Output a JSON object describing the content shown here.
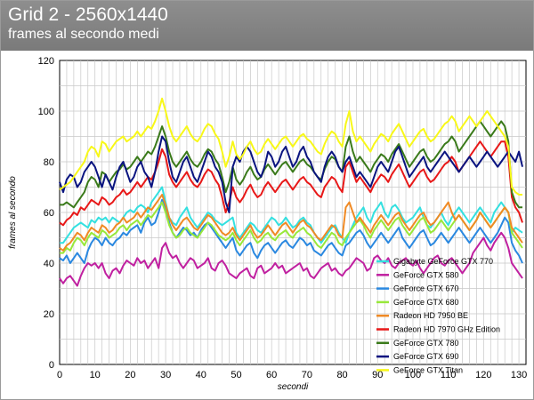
{
  "header": {
    "title": "Grid 2 - 2560x1440",
    "subtitle": "frames al secondo medi"
  },
  "colors": {
    "header_bg": "#858585",
    "grid": "#c8c8c8"
  },
  "chart_data": {
    "type": "line",
    "xlabel": "secondi",
    "ylabel": "frames al secondo",
    "xlim": [
      0,
      132
    ],
    "ylim": [
      0,
      120
    ],
    "xticks": [
      0,
      10,
      20,
      30,
      40,
      50,
      60,
      70,
      80,
      90,
      100,
      110,
      120,
      130
    ],
    "yticks": [
      0,
      20,
      40,
      60,
      80,
      100,
      120
    ],
    "grid": true,
    "legend_position": "bottom-right",
    "series": [
      {
        "name": "Gigabyte GeForce GTX 770",
        "color": "#33e0e0",
        "x_start": 0,
        "values": [
          48,
          48,
          50,
          52,
          54,
          55,
          56,
          55,
          54,
          57,
          56,
          58,
          57,
          58,
          56,
          58,
          57,
          56,
          58,
          60,
          61,
          60,
          62,
          63,
          62,
          60,
          64,
          66,
          68,
          70,
          64,
          58,
          56,
          55,
          58,
          60,
          62,
          58,
          56,
          54,
          56,
          58,
          60,
          59,
          57,
          56,
          55,
          56,
          57,
          58,
          52,
          50,
          52,
          54,
          56,
          55,
          53,
          52,
          54,
          56,
          58,
          57,
          55,
          56,
          58,
          56,
          54,
          55,
          57,
          58,
          56,
          55,
          52,
          50,
          48,
          50,
          52,
          54,
          55,
          52,
          50,
          48,
          52,
          55,
          58,
          60,
          62,
          58,
          56,
          60,
          62,
          64,
          60,
          58,
          62,
          63,
          61,
          58,
          56,
          57,
          58,
          60,
          62,
          58,
          55,
          54,
          56,
          58,
          60,
          57,
          55,
          58,
          60,
          62,
          60,
          58,
          56,
          58,
          60,
          62,
          60,
          58,
          56,
          60,
          62,
          64,
          62,
          60,
          52,
          54,
          53,
          52
        ]
      },
      {
        "name": "GeForce GTX 580",
        "color": "#c020a0",
        "x_start": 0,
        "values": [
          34,
          32,
          34,
          35,
          33,
          31,
          35,
          38,
          40,
          39,
          40,
          38,
          40,
          36,
          34,
          37,
          38,
          36,
          39,
          41,
          40,
          39,
          42,
          40,
          41,
          38,
          40,
          42,
          38,
          46,
          48,
          44,
          42,
          43,
          40,
          38,
          40,
          42,
          41,
          38,
          39,
          40,
          42,
          38,
          37,
          40,
          41,
          39,
          36,
          35,
          34,
          36,
          37,
          38,
          35,
          34,
          38,
          39,
          36,
          37,
          38,
          40,
          38,
          39,
          36,
          37,
          38,
          39,
          40,
          37,
          38,
          35,
          34,
          36,
          38,
          39,
          40,
          37,
          38,
          36,
          35,
          37,
          38,
          40,
          42,
          41,
          40,
          37,
          38,
          42,
          43,
          41,
          40,
          42,
          39,
          38,
          40,
          41,
          42,
          40,
          39,
          41,
          38,
          36,
          38,
          40,
          42,
          43,
          40,
          39,
          41,
          42,
          40,
          38,
          36,
          38,
          40,
          44,
          46,
          48,
          50,
          47,
          45,
          48,
          50,
          52,
          50,
          46,
          40,
          38,
          36,
          34
        ]
      },
      {
        "name": "GeForce GTX 670",
        "color": "#2a88e0",
        "x_start": 0,
        "values": [
          42,
          41,
          43,
          40,
          42,
          44,
          42,
          40,
          45,
          48,
          50,
          49,
          47,
          50,
          48,
          47,
          49,
          50,
          52,
          51,
          53,
          54,
          55,
          52,
          56,
          58,
          55,
          56,
          60,
          65,
          62,
          56,
          52,
          50,
          52,
          54,
          53,
          51,
          52,
          50,
          53,
          55,
          56,
          54,
          52,
          50,
          48,
          46,
          48,
          50,
          45,
          43,
          45,
          47,
          48,
          44,
          42,
          45,
          47,
          48,
          46,
          44,
          46,
          48,
          49,
          47,
          46,
          48,
          50,
          49,
          47,
          48,
          45,
          44,
          43,
          45,
          47,
          48,
          46,
          44,
          43,
          47,
          48,
          50,
          52,
          53,
          51,
          48,
          46,
          48,
          50,
          52,
          50,
          48,
          50,
          52,
          54,
          50,
          48,
          46,
          48,
          50,
          52,
          53,
          50,
          47,
          48,
          50,
          52,
          50,
          48,
          50,
          52,
          54,
          52,
          50,
          48,
          50,
          52,
          54,
          52,
          50,
          48,
          50,
          52,
          55,
          58,
          56,
          48,
          45,
          43,
          40
        ]
      },
      {
        "name": "GeForce GTX 680",
        "color": "#98e83a",
        "x_start": 0,
        "values": [
          44,
          44,
          46,
          45,
          48,
          50,
          49,
          47,
          50,
          52,
          51,
          50,
          53,
          52,
          50,
          51,
          52,
          54,
          55,
          53,
          55,
          56,
          57,
          55,
          57,
          59,
          58,
          60,
          62,
          64,
          60,
          55,
          52,
          50,
          51,
          53,
          54,
          52,
          51,
          50,
          52,
          54,
          56,
          55,
          53,
          51,
          50,
          49,
          50,
          52,
          49,
          47,
          49,
          51,
          53,
          50,
          48,
          49,
          51,
          52,
          50,
          49,
          51,
          52,
          53,
          51,
          50,
          52,
          53,
          54,
          52,
          51,
          49,
          47,
          46,
          48,
          50,
          52,
          51,
          48,
          47,
          50,
          52,
          54,
          56,
          57,
          55,
          52,
          50,
          53,
          55,
          57,
          55,
          53,
          55,
          57,
          58,
          55,
          53,
          51,
          53,
          55,
          57,
          58,
          55,
          52,
          53,
          55,
          57,
          55,
          53,
          55,
          57,
          59,
          57,
          55,
          53,
          55,
          57,
          60,
          58,
          56,
          54,
          56,
          58,
          60,
          62,
          60,
          52,
          50,
          48,
          46
        ]
      },
      {
        "name": "Radeon HD 7950 BE",
        "color": "#f08a24",
        "x_start": 0,
        "values": [
          46,
          45,
          47,
          48,
          50,
          52,
          51,
          49,
          52,
          54,
          53,
          52,
          55,
          54,
          52,
          53,
          55,
          56,
          58,
          56,
          57,
          58,
          60,
          58,
          60,
          62,
          61,
          63,
          65,
          67,
          63,
          58,
          55,
          53,
          55,
          57,
          58,
          56,
          54,
          53,
          55,
          57,
          59,
          58,
          56,
          54,
          52,
          51,
          52,
          54,
          51,
          49,
          51,
          53,
          55,
          52,
          50,
          51,
          53,
          55,
          53,
          51,
          53,
          55,
          56,
          54,
          52,
          54,
          56,
          57,
          55,
          54,
          52,
          50,
          49,
          51,
          53,
          55,
          54,
          51,
          50,
          62,
          64,
          60,
          56,
          58,
          56,
          54,
          52,
          55,
          57,
          59,
          57,
          55,
          57,
          59,
          60,
          57,
          55,
          53,
          55,
          57,
          59,
          60,
          57,
          55,
          56,
          58,
          60,
          62,
          64,
          60,
          57,
          59,
          57,
          55,
          53,
          55,
          57,
          60,
          58,
          56,
          54,
          56,
          58,
          60,
          62,
          60,
          54,
          52,
          50,
          48
        ]
      },
      {
        "name": "Radeon HD 7970 GHz Edition",
        "color": "#e81818",
        "x_start": 0,
        "values": [
          56,
          55,
          57,
          58,
          60,
          59,
          62,
          61,
          63,
          65,
          64,
          63,
          66,
          65,
          63,
          64,
          66,
          67,
          69,
          67,
          68,
          70,
          72,
          70,
          72,
          74,
          73,
          76,
          80,
          85,
          82,
          75,
          72,
          70,
          72,
          74,
          76,
          73,
          71,
          70,
          72,
          75,
          77,
          76,
          73,
          71,
          66,
          60,
          64,
          70,
          66,
          64,
          66,
          69,
          71,
          68,
          66,
          67,
          70,
          72,
          70,
          68,
          70,
          72,
          73,
          71,
          69,
          71,
          73,
          74,
          72,
          71,
          69,
          67,
          66,
          70,
          72,
          74,
          73,
          70,
          68,
          78,
          80,
          76,
          72,
          74,
          72,
          70,
          68,
          71,
          73,
          75,
          74,
          72,
          75,
          77,
          79,
          76,
          73,
          70,
          72,
          74,
          76,
          77,
          74,
          72,
          73,
          75,
          77,
          79,
          80,
          82,
          80,
          76,
          78,
          80,
          82,
          84,
          86,
          88,
          86,
          84,
          82,
          84,
          86,
          88,
          88,
          82,
          66,
          62,
          60,
          56
        ]
      },
      {
        "name": "GeForce GTX 780",
        "color": "#3a7a1a",
        "x_start": 0,
        "values": [
          63,
          63,
          64,
          63,
          62,
          64,
          66,
          68,
          72,
          74,
          73,
          70,
          76,
          75,
          72,
          74,
          76,
          77,
          79,
          77,
          78,
          80,
          82,
          80,
          82,
          84,
          83,
          86,
          90,
          94,
          90,
          84,
          80,
          78,
          80,
          82,
          84,
          81,
          79,
          78,
          80,
          83,
          85,
          84,
          81,
          79,
          74,
          68,
          72,
          78,
          73,
          71,
          73,
          76,
          78,
          75,
          73,
          74,
          77,
          79,
          77,
          75,
          77,
          79,
          80,
          78,
          76,
          78,
          80,
          81,
          79,
          78,
          76,
          74,
          73,
          77,
          80,
          82,
          81,
          78,
          76,
          86,
          90,
          84,
          80,
          82,
          80,
          78,
          76,
          79,
          81,
          83,
          82,
          80,
          83,
          85,
          87,
          84,
          81,
          78,
          80,
          82,
          84,
          85,
          82,
          80,
          81,
          83,
          85,
          87,
          88,
          90,
          88,
          84,
          86,
          88,
          90,
          92,
          94,
          96,
          94,
          92,
          90,
          92,
          94,
          96,
          94,
          88,
          68,
          64,
          62,
          62
        ]
      },
      {
        "name": "GeForce GTX 690",
        "color": "#0a1480",
        "x_start": 0,
        "values": [
          72,
          68,
          73,
          75,
          74,
          70,
          72,
          76,
          78,
          80,
          78,
          74,
          70,
          75,
          72,
          69,
          74,
          78,
          80,
          76,
          72,
          74,
          78,
          80,
          76,
          74,
          70,
          76,
          84,
          90,
          88,
          80,
          74,
          72,
          76,
          80,
          82,
          78,
          74,
          72,
          76,
          80,
          84,
          82,
          78,
          76,
          72,
          64,
          60,
          78,
          82,
          80,
          84,
          86,
          84,
          80,
          76,
          74,
          78,
          84,
          82,
          78,
          80,
          84,
          86,
          82,
          78,
          80,
          84,
          86,
          82,
          80,
          76,
          74,
          72,
          78,
          82,
          84,
          82,
          78,
          76,
          80,
          82,
          78,
          74,
          76,
          74,
          72,
          70,
          74,
          78,
          80,
          78,
          76,
          80,
          84,
          86,
          82,
          78,
          74,
          76,
          78,
          80,
          82,
          78,
          76,
          78,
          80,
          82,
          84,
          82,
          80,
          78,
          76,
          78,
          80,
          82,
          80,
          78,
          80,
          82,
          84,
          82,
          80,
          78,
          80,
          82,
          84,
          82,
          80,
          84,
          78
        ]
      },
      {
        "name": "GeForce GTX Titan",
        "color": "#f8f818",
        "x_start": 0,
        "values": [
          69,
          70,
          71,
          72,
          74,
          76,
          78,
          80,
          84,
          86,
          85,
          82,
          88,
          87,
          84,
          86,
          88,
          89,
          90,
          88,
          89,
          90,
          92,
          90,
          92,
          94,
          93,
          96,
          100,
          105,
          100,
          94,
          90,
          88,
          90,
          92,
          94,
          91,
          89,
          88,
          90,
          93,
          95,
          94,
          91,
          89,
          84,
          78,
          82,
          88,
          83,
          81,
          83,
          86,
          88,
          85,
          83,
          84,
          87,
          89,
          87,
          85,
          87,
          89,
          90,
          88,
          86,
          88,
          90,
          91,
          89,
          88,
          86,
          84,
          83,
          87,
          90,
          92,
          91,
          88,
          86,
          95,
          100,
          92,
          88,
          90,
          88,
          86,
          84,
          87,
          89,
          91,
          90,
          88,
          91,
          93,
          95,
          92,
          89,
          86,
          88,
          90,
          92,
          93,
          90,
          88,
          89,
          91,
          93,
          95,
          96,
          98,
          96,
          92,
          94,
          96,
          98,
          96,
          94,
          96,
          98,
          100,
          98,
          96,
          94,
          92,
          90,
          86,
          70,
          68,
          67,
          67
        ]
      }
    ]
  }
}
